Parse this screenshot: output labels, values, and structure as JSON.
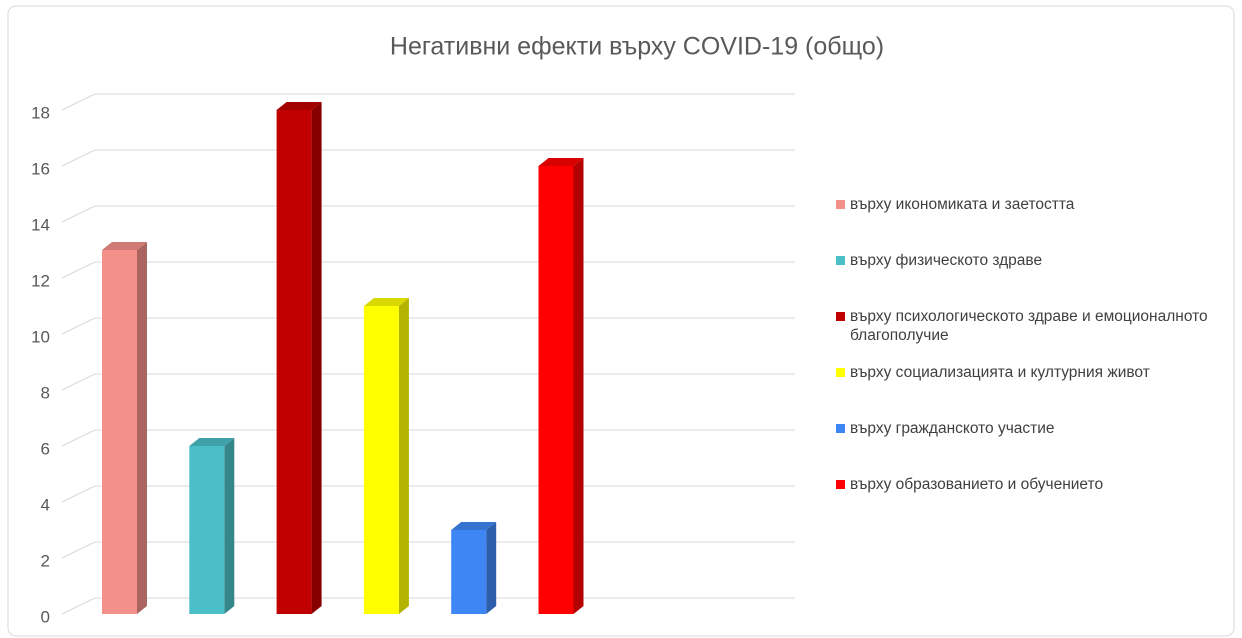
{
  "chart_data": {
    "type": "bar",
    "title": "Негативни ефекти върху COVID-19 (общо)",
    "series": [
      {
        "name": "върху икономиката и заетостта",
        "color": "#f4908a",
        "values": [
          13
        ]
      },
      {
        "name": "върху физическото здраве",
        "color": "#4bbfc7",
        "values": [
          6
        ]
      },
      {
        "name": "върху психологическото здраве и емоционалното благополучие",
        "color": "#c00000",
        "values": [
          18
        ]
      },
      {
        "name": "върху социализацията и културния живот",
        "color": "#ffff00",
        "values": [
          11
        ]
      },
      {
        "name": "върху гражданското участие",
        "color": "#3f86f5",
        "values": [
          3
        ]
      },
      {
        "name": "върху образованието и обучението",
        "color": "#ff0000",
        "values": [
          16
        ]
      }
    ],
    "ylim": [
      0,
      18
    ],
    "yticks": [
      0,
      2,
      4,
      6,
      8,
      10,
      12,
      14,
      16,
      18
    ],
    "grid": true,
    "legend": "right"
  }
}
